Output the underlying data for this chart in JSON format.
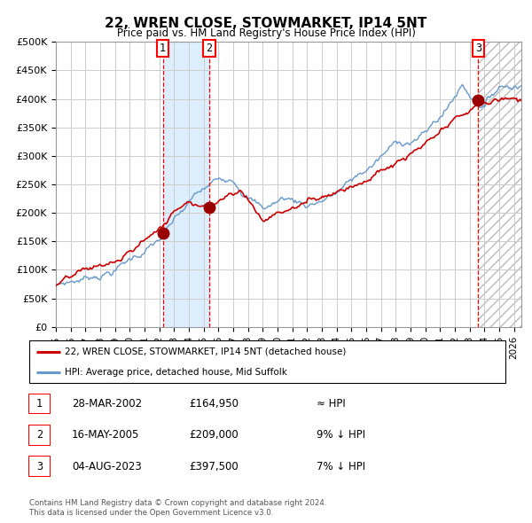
{
  "title": "22, WREN CLOSE, STOWMARKET, IP14 5NT",
  "subtitle": "Price paid vs. HM Land Registry's House Price Index (HPI)",
  "ylabel_ticks": [
    "£0",
    "£50K",
    "£100K",
    "£150K",
    "£200K",
    "£250K",
    "£300K",
    "£350K",
    "£400K",
    "£450K",
    "£500K"
  ],
  "ytick_values": [
    0,
    50000,
    100000,
    150000,
    200000,
    250000,
    300000,
    350000,
    400000,
    450000,
    500000
  ],
  "ylim": [
    0,
    500000
  ],
  "xlim_start": 1995.0,
  "xlim_end": 2026.5,
  "sale_dates": [
    2002.24,
    2005.38,
    2023.59
  ],
  "sale_prices": [
    164950,
    209000,
    397500
  ],
  "sale_labels": [
    "1",
    "2",
    "3"
  ],
  "bg_shade_x1": 2002.24,
  "bg_shade_x2": 2005.38,
  "hatch_x_start": 2023.59,
  "legend_label_red": "22, WREN CLOSE, STOWMARKET, IP14 5NT (detached house)",
  "legend_label_blue": "HPI: Average price, detached house, Mid Suffolk",
  "table_entries": [
    {
      "num": "1",
      "date": "28-MAR-2002",
      "price": "£164,950",
      "rel": "≈ HPI"
    },
    {
      "num": "2",
      "date": "16-MAY-2005",
      "price": "£209,000",
      "rel": "9% ↓ HPI"
    },
    {
      "num": "3",
      "date": "04-AUG-2023",
      "price": "£397,500",
      "rel": "7% ↓ HPI"
    }
  ],
  "footer1": "Contains HM Land Registry data © Crown copyright and database right 2024.",
  "footer2": "This data is licensed under the Open Government Licence v3.0.",
  "grid_color": "#cccccc",
  "red_line_color": "#cc0000",
  "blue_line_color": "#6699cc",
  "dot_color": "#990000",
  "shade_color": "#ddeeff"
}
